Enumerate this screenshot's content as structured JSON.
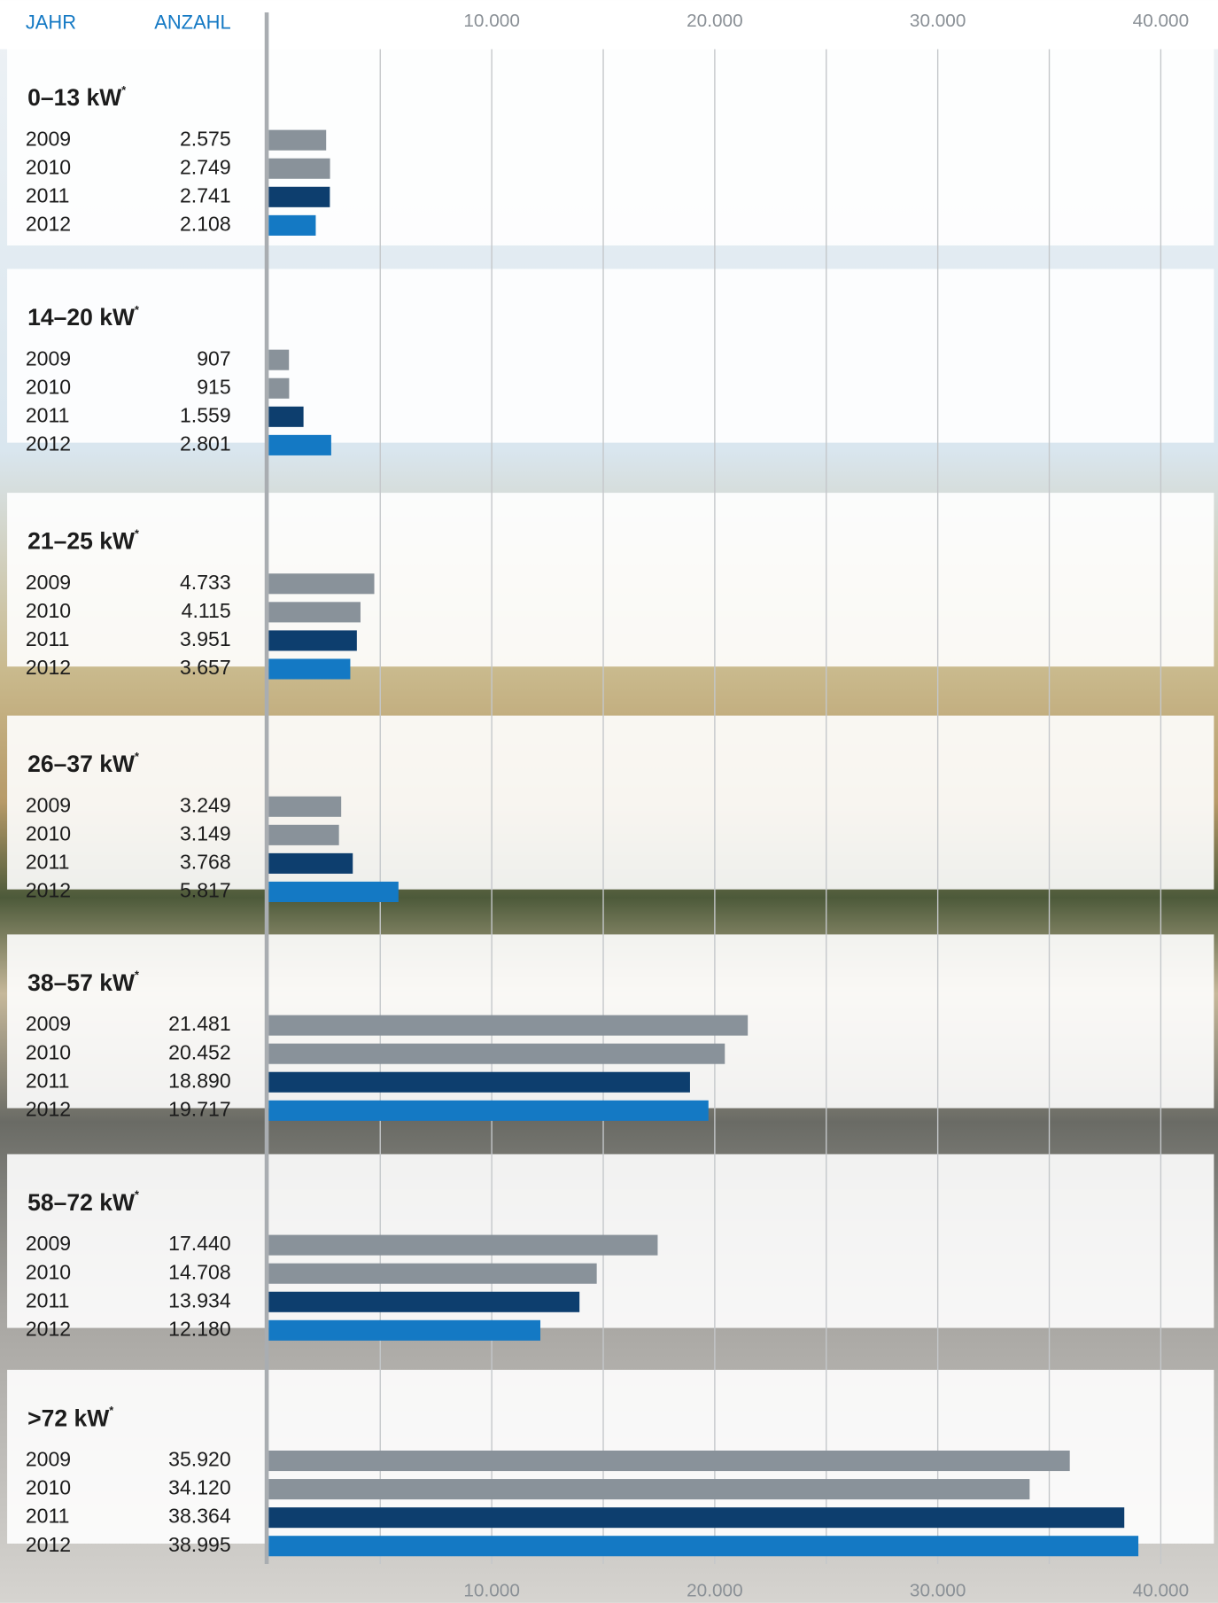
{
  "chart_data": {
    "type": "bar",
    "orientation": "horizontal",
    "year_header": "JAHR",
    "count_header": "ANZAHL",
    "footnote_marker": "*",
    "categories": [
      "0–13 kW",
      "14–20 kW",
      "21–25 kW",
      "26–37 kW",
      "38–57 kW",
      "58–72 kW",
      ">72 kW"
    ],
    "series": [
      {
        "name": "2009",
        "color": "#89929a",
        "values": [
          2575,
          907,
          4733,
          3249,
          21481,
          17440,
          35920
        ],
        "value_labels": [
          "2.575",
          "907",
          "4.733",
          "3.249",
          "21.481",
          "17.440",
          "35.920"
        ]
      },
      {
        "name": "2010",
        "color": "#89929a",
        "values": [
          2749,
          915,
          4115,
          3149,
          20452,
          14708,
          34120
        ],
        "value_labels": [
          "2.749",
          "915",
          "4.115",
          "3.149",
          "20.452",
          "14.708",
          "34.120"
        ]
      },
      {
        "name": "2011",
        "color": "#0d3e6e",
        "values": [
          2741,
          1559,
          3951,
          3768,
          18890,
          13934,
          38364
        ],
        "value_labels": [
          "2.741",
          "1.559",
          "3.951",
          "3.768",
          "18.890",
          "13.934",
          "38.364"
        ]
      },
      {
        "name": "2012",
        "color": "#1479c4",
        "values": [
          2108,
          2801,
          3657,
          5817,
          19717,
          12180,
          38995
        ],
        "value_labels": [
          "2.108",
          "2.801",
          "3.657",
          "5.817",
          "19.717",
          "12.180",
          "38.995"
        ]
      }
    ],
    "xlim": [
      0,
      42500
    ],
    "xticks": [
      {
        "value": 10000,
        "label": "10.000"
      },
      {
        "value": 20000,
        "label": "20.000"
      },
      {
        "value": 30000,
        "label": "30.000"
      },
      {
        "value": 40000,
        "label": "40.000"
      }
    ],
    "grid": true
  }
}
